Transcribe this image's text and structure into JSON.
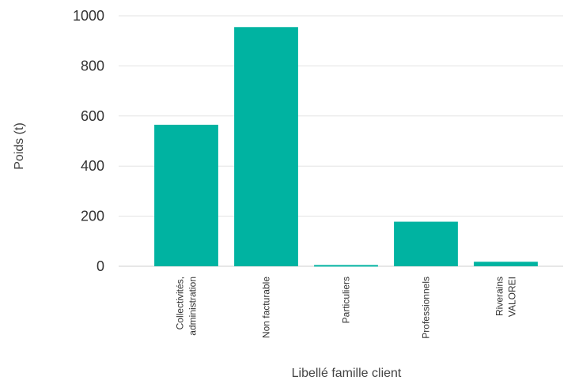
{
  "chart_data": {
    "type": "bar",
    "categories": [
      [
        "Collectivités,",
        "administration"
      ],
      [
        "Non facturable"
      ],
      [
        "Particuliers"
      ],
      [
        "Professionnels"
      ],
      [
        "Riverains",
        "VALOREI"
      ]
    ],
    "values": [
      565,
      955,
      5,
      178,
      18
    ],
    "title": "",
    "xlabel": "Libellé famille client",
    "ylabel": "Poids (t)",
    "ylim": [
      0,
      1000
    ],
    "yticks": [
      0,
      200,
      400,
      600,
      800,
      1000
    ],
    "grid": true,
    "legend": "none",
    "colors": {
      "bar": "#00b3a1",
      "grid": "#e3e3e3",
      "text": "#333333"
    }
  }
}
